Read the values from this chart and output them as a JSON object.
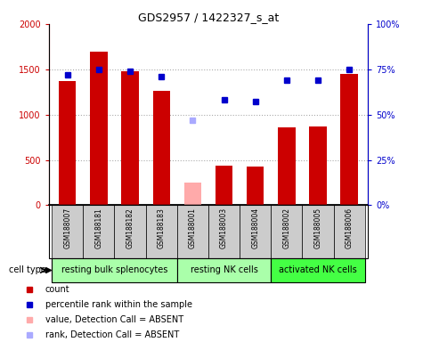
{
  "title": "GDS2957 / 1422327_s_at",
  "samples": [
    "GSM188007",
    "GSM188181",
    "GSM188182",
    "GSM188183",
    "GSM188001",
    "GSM188003",
    "GSM188004",
    "GSM188002",
    "GSM188005",
    "GSM188006"
  ],
  "counts": [
    1370,
    1690,
    1480,
    1260,
    null,
    440,
    430,
    855,
    870,
    1450
  ],
  "counts_absent": [
    null,
    null,
    null,
    null,
    250,
    null,
    null,
    null,
    null,
    null
  ],
  "percentile_ranks": [
    72,
    75,
    74,
    71,
    null,
    58,
    57,
    69,
    69,
    75
  ],
  "percentile_ranks_absent": [
    null,
    null,
    null,
    null,
    47,
    null,
    null,
    null,
    null,
    null
  ],
  "cell_groups": [
    {
      "label": "resting bulk splenocytes",
      "start": 0,
      "end": 3,
      "color": "#aaffaa"
    },
    {
      "label": "resting NK cells",
      "start": 4,
      "end": 6,
      "color": "#aaffaa"
    },
    {
      "label": "activated NK cells",
      "start": 7,
      "end": 9,
      "color": "#44ff44"
    }
  ],
  "ylim_left": [
    0,
    2000
  ],
  "ylim_right": [
    0,
    100
  ],
  "yticks_left": [
    0,
    500,
    1000,
    1500,
    2000
  ],
  "yticks_right": [
    0,
    25,
    50,
    75,
    100
  ],
  "yticklabels_left": [
    "0",
    "500",
    "1000",
    "1500",
    "2000"
  ],
  "yticklabels_right": [
    "0%",
    "25%",
    "50%",
    "75%",
    "100%"
  ],
  "bar_color_present": "#cc0000",
  "bar_color_absent": "#ffaaaa",
  "dot_color_present": "#0000cc",
  "dot_color_absent": "#aaaaff",
  "left_tick_color": "#cc0000",
  "right_tick_color": "#0000cc",
  "grid_color": "#aaaaaa",
  "bar_width": 0.55,
  "background_color": "#ffffff",
  "plot_bg_color": "#ffffff",
  "sample_bg_color": "#cccccc",
  "cell_type_label": "cell type"
}
